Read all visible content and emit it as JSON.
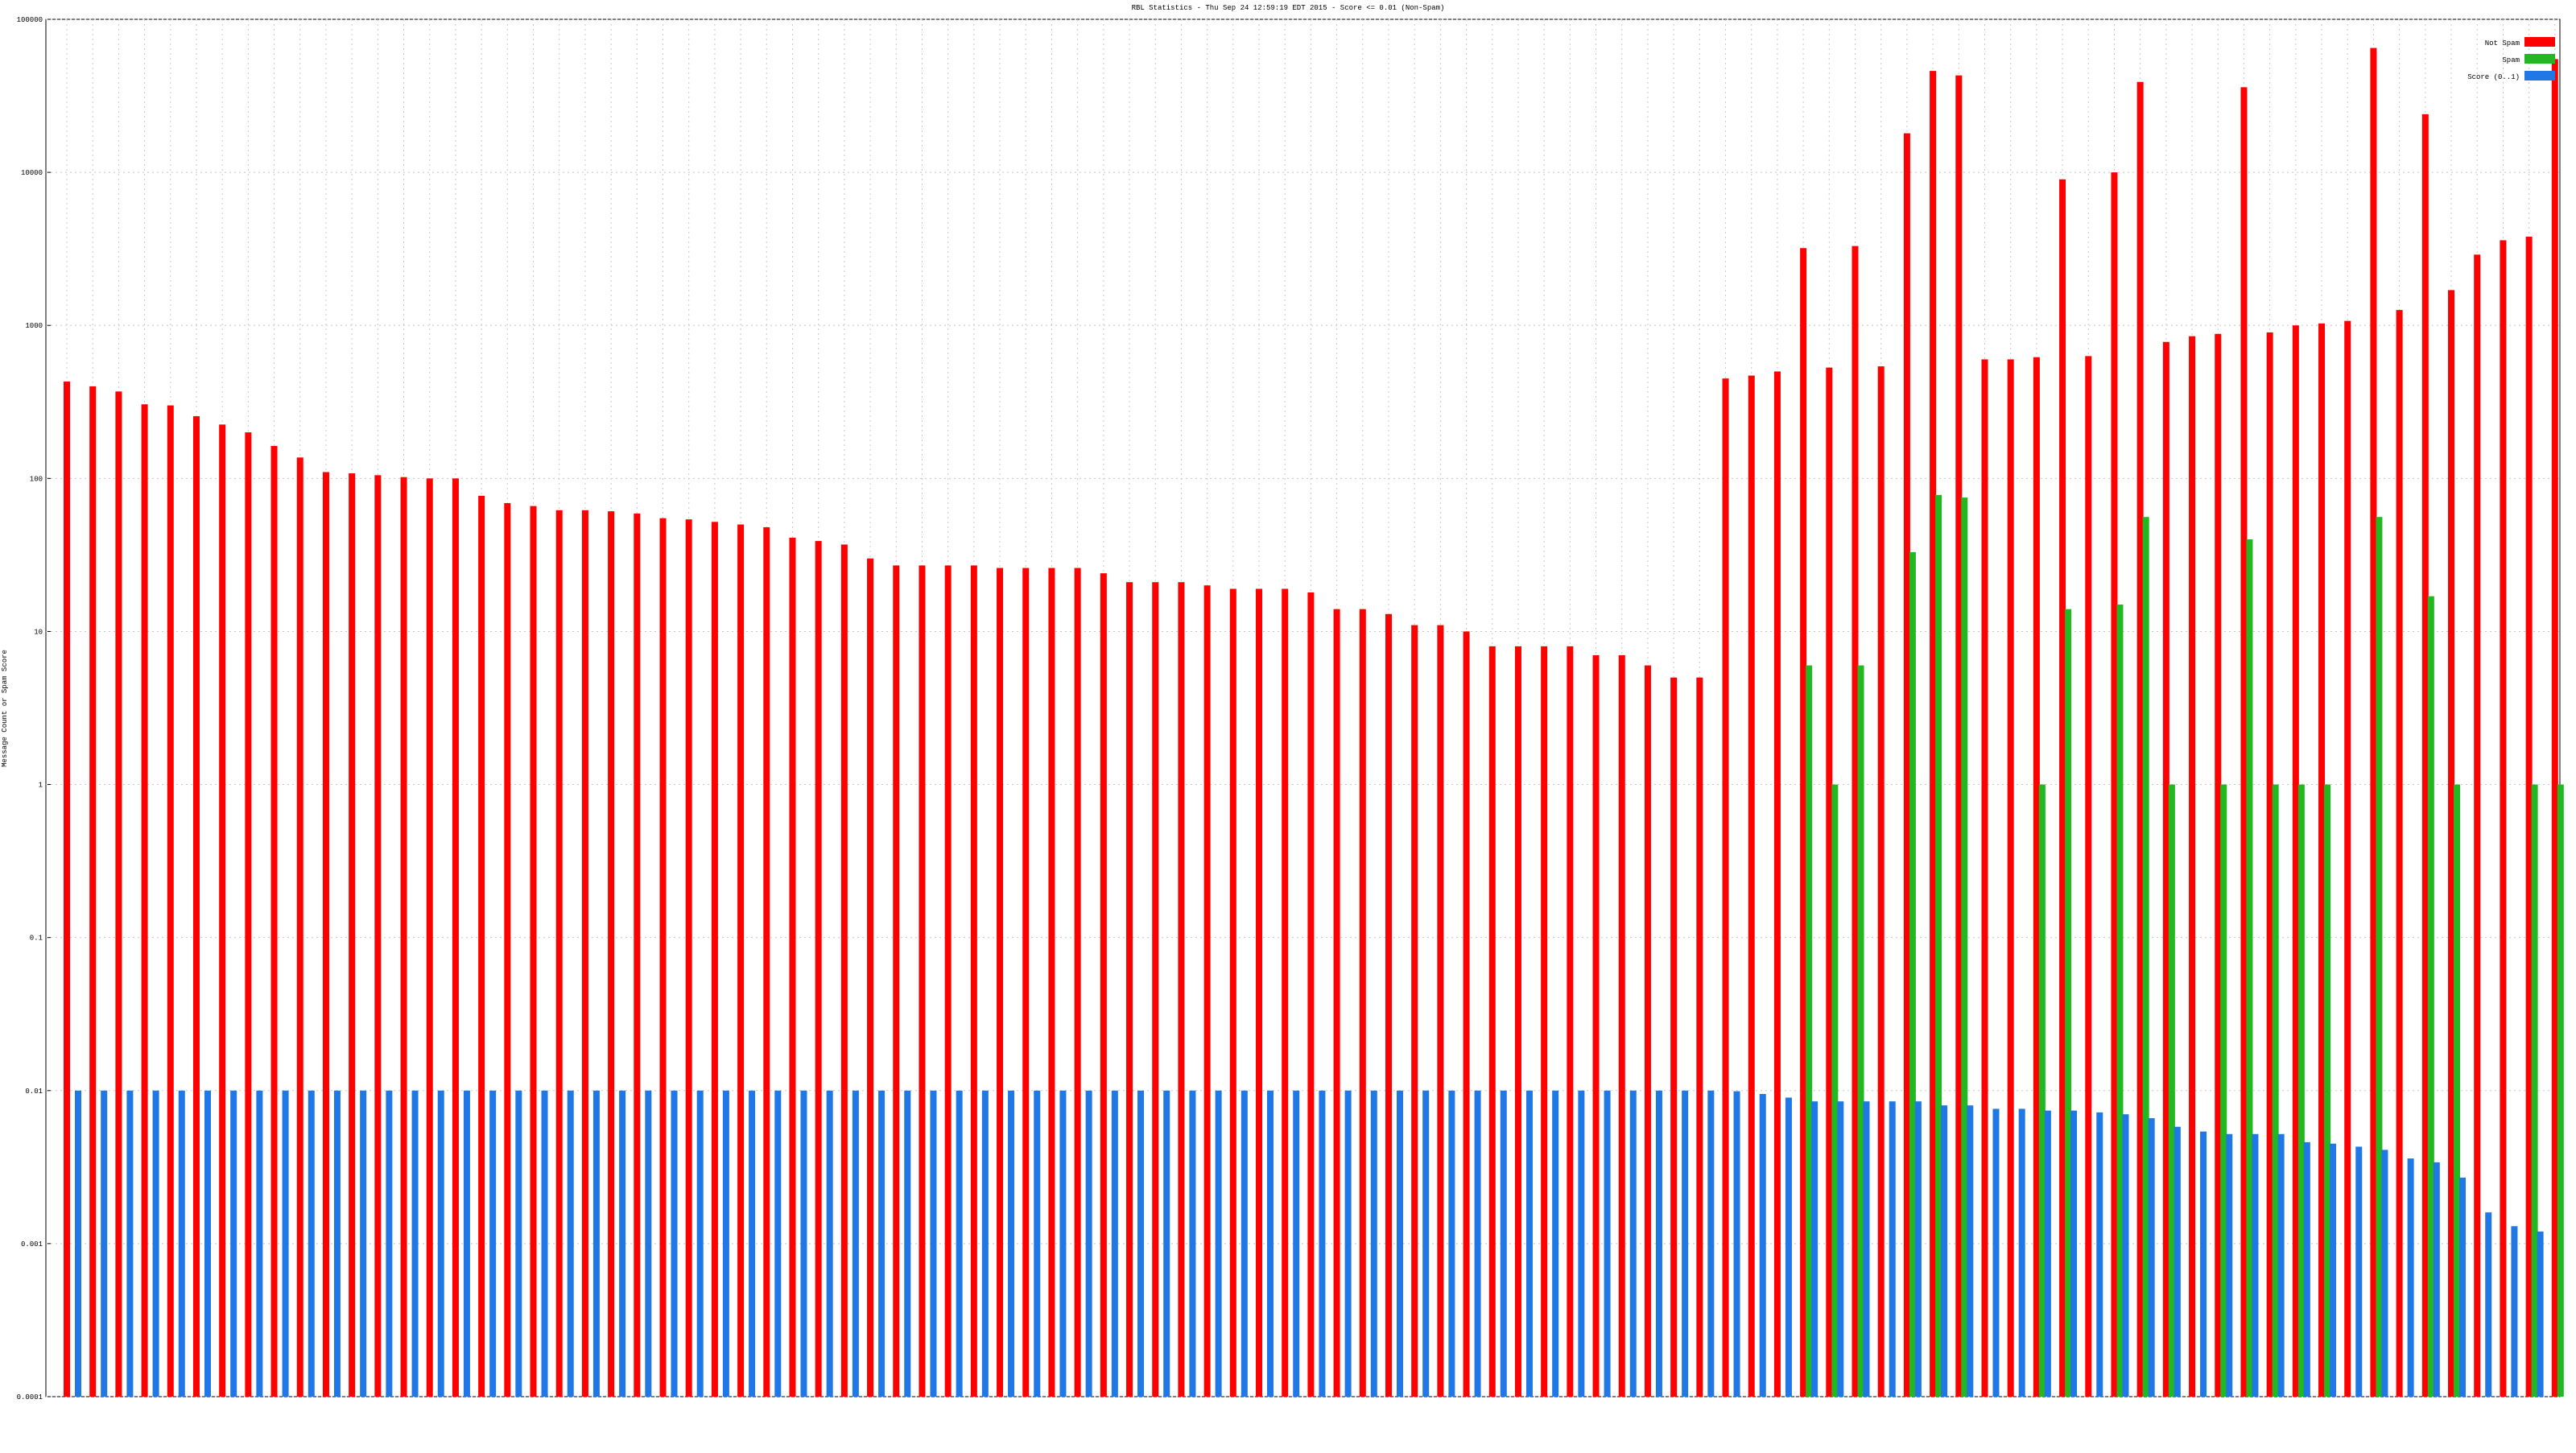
{
  "chart_data": {
    "type": "grouped-bar",
    "title": "RBL Statistics - Thu Sep 24 12:59:19 EDT 2015 - Score <= 0.01 (Non-Spam)",
    "y_label": "Message Count or Spam Score",
    "log_scale": true,
    "grid": true,
    "legend": "top-right",
    "ylim": [
      0.0001,
      100000
    ],
    "yticks": [
      0.0001,
      0.001,
      0.01,
      0.1,
      1,
      10,
      100,
      1000,
      10000,
      100000
    ],
    "categories": [
      null,
      null,
      null,
      null,
      null,
      null,
      null,
      null,
      null,
      null,
      null,
      null,
      null,
      null,
      null,
      null,
      null,
      null,
      null,
      null,
      null,
      null,
      null,
      null,
      null,
      null,
      null,
      null,
      null,
      null,
      null,
      null,
      null,
      null,
      null,
      null,
      null,
      null,
      null,
      null,
      null,
      null,
      null,
      null,
      null,
      null,
      null,
      null,
      null,
      null,
      null,
      null,
      null,
      null,
      null,
      null,
      null,
      null,
      null,
      null,
      null,
      null,
      null,
      null,
      null,
      null,
      null,
      null,
      null,
      null,
      null,
      null,
      null,
      null,
      null,
      null,
      null,
      null,
      null,
      null,
      null,
      null,
      null,
      null,
      null,
      null,
      null,
      null,
      null,
      null,
      null,
      null,
      null,
      null,
      null,
      null,
      null
    ],
    "series": [
      {
        "name": "Not Spam",
        "color": "#ff0000",
        "values": [
          430,
          400,
          370,
          305,
          300,
          255,
          225,
          200,
          163,
          137,
          110,
          108,
          105,
          102,
          100,
          100,
          77,
          69,
          66,
          62,
          62,
          61,
          59,
          55,
          54,
          52,
          50,
          48,
          41,
          39,
          37,
          30,
          27,
          27,
          27,
          27,
          26,
          26,
          26,
          26,
          24,
          21,
          21,
          21,
          20,
          19,
          19,
          19,
          18,
          14,
          14,
          13,
          11,
          11,
          10,
          8,
          8,
          8,
          8,
          7,
          7,
          6,
          5,
          5,
          450,
          470,
          500,
          3200,
          530,
          3300,
          540,
          18000,
          46000,
          43000,
          600,
          600,
          620,
          9000,
          630,
          10000,
          39000,
          780,
          850,
          880,
          36000,
          900,
          1000,
          1030,
          1070,
          65000,
          1260,
          24000,
          1700,
          2900,
          3600,
          3800,
          55000
        ]
      },
      {
        "name": "Spam",
        "color": "#22b822",
        "values": [
          null,
          null,
          null,
          null,
          null,
          null,
          null,
          null,
          null,
          null,
          null,
          null,
          null,
          null,
          null,
          null,
          null,
          null,
          null,
          null,
          null,
          null,
          null,
          null,
          null,
          null,
          null,
          null,
          null,
          null,
          null,
          null,
          null,
          null,
          null,
          null,
          null,
          null,
          null,
          null,
          null,
          null,
          null,
          null,
          null,
          null,
          null,
          null,
          null,
          null,
          null,
          null,
          null,
          null,
          null,
          null,
          null,
          null,
          null,
          null,
          null,
          null,
          null,
          null,
          null,
          null,
          null,
          6,
          1,
          6,
          null,
          33,
          78,
          75,
          null,
          null,
          1,
          14,
          null,
          15,
          56,
          1,
          null,
          1,
          40,
          1,
          1,
          1,
          null,
          56,
          null,
          17,
          1,
          null,
          null,
          1,
          1
        ]
      },
      {
        "name": "Score (0..1)",
        "color": "#1f78e6",
        "values": [
          0.01,
          0.01,
          0.01,
          0.01,
          0.01,
          0.01,
          0.01,
          0.01,
          0.01,
          0.01,
          0.01,
          0.01,
          0.01,
          0.01,
          0.01,
          0.01,
          0.01,
          0.01,
          0.01,
          0.01,
          0.01,
          0.01,
          0.01,
          0.01,
          0.01,
          0.01,
          0.01,
          0.01,
          0.01,
          0.01,
          0.01,
          0.01,
          0.01,
          0.01,
          0.01,
          0.01,
          0.01,
          0.01,
          0.01,
          0.01,
          0.01,
          0.01,
          0.01,
          0.01,
          0.01,
          0.01,
          0.01,
          0.01,
          0.01,
          0.01,
          0.01,
          0.01,
          0.01,
          0.01,
          0.01,
          0.01,
          0.01,
          0.01,
          0.01,
          0.01,
          0.01,
          0.01,
          0.01,
          0.01,
          0.0099,
          0.0095,
          0.009,
          0.0085,
          0.0085,
          0.0085,
          0.0085,
          0.0085,
          0.008,
          0.008,
          0.0076,
          0.0076,
          0.0074,
          0.0074,
          0.0072,
          0.007,
          0.0066,
          0.0058,
          0.0054,
          0.0052,
          0.0052,
          0.0052,
          0.0046,
          0.0045,
          0.0043,
          0.0041,
          0.0036,
          0.0034,
          0.0027,
          0.0016,
          0.0013,
          0.0012,
          null
        ]
      }
    ]
  }
}
